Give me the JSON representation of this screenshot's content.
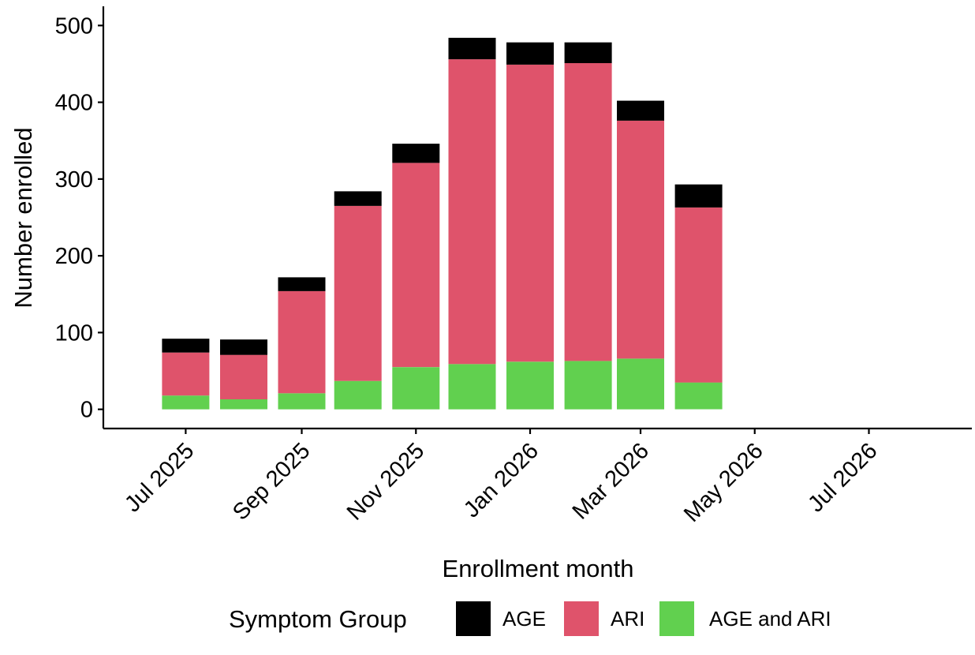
{
  "chart_data": {
    "type": "bar",
    "stacked": true,
    "xlabel": "Enrollment month",
    "ylabel": "Number enrolled",
    "x_ticks": [
      "Jul 2025",
      "Sep 2025",
      "Nov 2025",
      "Jan 2026",
      "Mar 2026",
      "May 2026",
      "Jul 2026"
    ],
    "x_range": [
      "2025-05-18",
      "2026-08-25"
    ],
    "x_tick_dates": [
      "2025-07-01",
      "2025-09-01",
      "2025-11-01",
      "2026-01-01",
      "2026-03-01",
      "2026-05-01",
      "2026-07-01"
    ],
    "y_ticks": [
      0,
      100,
      200,
      300,
      400,
      500
    ],
    "ylim": [
      -25,
      525
    ],
    "categories": [
      "2025-07-01",
      "2025-08-01",
      "2025-09-01",
      "2025-10-01",
      "2025-11-01",
      "2025-12-01",
      "2026-01-01",
      "2026-02-01",
      "2026-03-01",
      "2026-04-01"
    ],
    "series": [
      {
        "name": "AGE and ARI",
        "color": "#61D04F",
        "values": [
          18,
          13,
          21,
          37,
          55,
          59,
          62,
          63,
          66,
          35
        ]
      },
      {
        "name": "ARI",
        "color": "#DF536B",
        "values": [
          56,
          58,
          133,
          228,
          266,
          397,
          387,
          388,
          310,
          228
        ]
      },
      {
        "name": "AGE",
        "color": "#000000",
        "values": [
          18,
          20,
          18,
          19,
          25,
          28,
          29,
          27,
          26,
          30
        ]
      }
    ],
    "legend": {
      "title": "Symptom Group",
      "position": "bottom",
      "order": [
        "AGE",
        "ARI",
        "AGE and ARI"
      ]
    },
    "grid": false
  }
}
